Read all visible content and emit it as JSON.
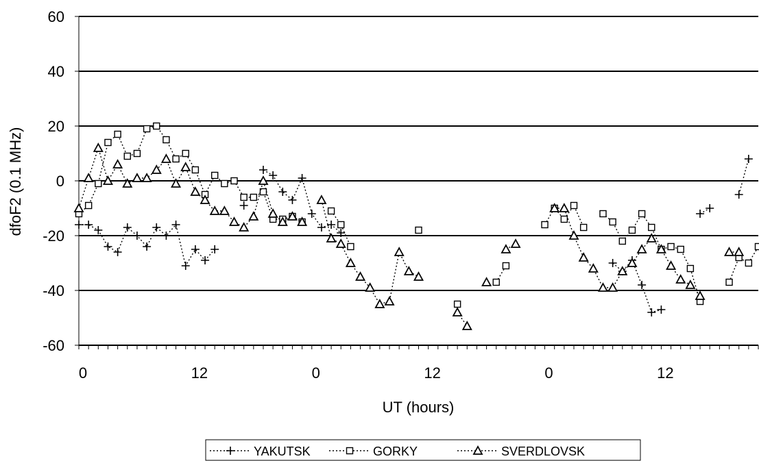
{
  "chart_data": {
    "type": "scatter",
    "title": "",
    "xlabel": "UT (hours)",
    "ylabel": "dfoF2 (0.1 MHz)",
    "ylim": [
      -60,
      60
    ],
    "yticks": [
      "60",
      "40",
      "20",
      "0",
      "-20",
      "-40",
      "-60"
    ],
    "x_unit": "hours since start of record (three consecutive days)",
    "xlim": [
      0,
      70
    ],
    "xtick_labels": [
      {
        "x": 0,
        "label": "0"
      },
      {
        "x": 12,
        "label": "12"
      },
      {
        "x": 24,
        "label": "0"
      },
      {
        "x": 36,
        "label": "12"
      },
      {
        "x": 48,
        "label": "0"
      },
      {
        "x": 60,
        "label": "12"
      }
    ],
    "grid": "horizontal",
    "legend_placement": "bottom-center",
    "series": [
      {
        "name": "YAKUTSK",
        "marker": "plus",
        "points": [
          [
            0,
            -16
          ],
          [
            1,
            -16
          ],
          [
            2,
            -18
          ],
          [
            3,
            -24
          ],
          [
            4,
            -26
          ],
          [
            5,
            -17
          ],
          [
            6,
            -20
          ],
          [
            7,
            -24
          ],
          [
            8,
            -17
          ],
          [
            9,
            -20
          ],
          [
            10,
            -16
          ],
          [
            11,
            -31
          ],
          [
            12,
            -25
          ],
          [
            13,
            -29
          ],
          [
            14,
            -25
          ],
          [
            17,
            -9
          ],
          [
            19,
            4
          ],
          [
            20,
            2
          ],
          [
            21,
            -4
          ],
          [
            22,
            -7
          ],
          [
            23,
            1
          ],
          [
            24,
            -12
          ],
          [
            25,
            -17
          ],
          [
            26,
            -16
          ],
          [
            27,
            -19
          ],
          [
            55,
            -30
          ],
          [
            56,
            -33
          ],
          [
            57,
            -29
          ],
          [
            58,
            -38
          ],
          [
            59,
            -48
          ],
          [
            60,
            -47
          ],
          [
            64,
            -12
          ],
          [
            65,
            -10
          ],
          [
            68,
            -5
          ],
          [
            69,
            8
          ]
        ]
      },
      {
        "name": "GORKY",
        "marker": "square",
        "points": [
          [
            0,
            -12
          ],
          [
            1,
            -9
          ],
          [
            2,
            -1
          ],
          [
            3,
            14
          ],
          [
            4,
            17
          ],
          [
            5,
            9
          ],
          [
            6,
            10
          ],
          [
            7,
            19
          ],
          [
            8,
            20
          ],
          [
            9,
            15
          ],
          [
            10,
            8
          ],
          [
            11,
            10
          ],
          [
            12,
            4
          ],
          [
            13,
            -5
          ],
          [
            14,
            2
          ],
          [
            15,
            -1
          ],
          [
            16,
            0
          ],
          [
            17,
            -6
          ],
          [
            18,
            -6
          ],
          [
            19,
            -4
          ],
          [
            20,
            -14
          ],
          [
            21,
            -14
          ],
          [
            22,
            -13
          ],
          [
            23,
            -15
          ],
          [
            26,
            -11
          ],
          [
            27,
            -16
          ],
          [
            28,
            -24
          ],
          [
            35,
            -18
          ],
          [
            39,
            -45
          ],
          [
            43,
            -37
          ],
          [
            44,
            -31
          ],
          [
            48,
            -16
          ],
          [
            49,
            -10
          ],
          [
            50,
            -14
          ],
          [
            51,
            -9
          ],
          [
            52,
            -17
          ],
          [
            54,
            -12
          ],
          [
            55,
            -15
          ],
          [
            56,
            -22
          ],
          [
            57,
            -18
          ],
          [
            58,
            -12
          ],
          [
            59,
            -17
          ],
          [
            60,
            -25
          ],
          [
            61,
            -24
          ],
          [
            62,
            -25
          ],
          [
            63,
            -32
          ],
          [
            64,
            -44
          ],
          [
            67,
            -37
          ],
          [
            68,
            -28
          ],
          [
            69,
            -30
          ],
          [
            70,
            -24
          ]
        ]
      },
      {
        "name": "SVERDLOVSK",
        "marker": "triangle",
        "points": [
          [
            0,
            -10
          ],
          [
            1,
            1
          ],
          [
            2,
            12
          ],
          [
            3,
            0
          ],
          [
            4,
            6
          ],
          [
            5,
            -1
          ],
          [
            6,
            1
          ],
          [
            7,
            1
          ],
          [
            8,
            4
          ],
          [
            9,
            8
          ],
          [
            10,
            -1
          ],
          [
            11,
            5
          ],
          [
            12,
            -4
          ],
          [
            13,
            -7
          ],
          [
            14,
            -11
          ],
          [
            15,
            -11
          ],
          [
            16,
            -15
          ],
          [
            17,
            -17
          ],
          [
            18,
            -13
          ],
          [
            19,
            0
          ],
          [
            20,
            -12
          ],
          [
            21,
            -15
          ],
          [
            22,
            -13
          ],
          [
            23,
            -15
          ],
          [
            25,
            -7
          ],
          [
            26,
            -21
          ],
          [
            27,
            -23
          ],
          [
            28,
            -30
          ],
          [
            29,
            -35
          ],
          [
            30,
            -39
          ],
          [
            31,
            -45
          ],
          [
            32,
            -44
          ],
          [
            33,
            -26
          ],
          [
            34,
            -33
          ],
          [
            35,
            -35
          ],
          [
            39,
            -48
          ],
          [
            40,
            -53
          ],
          [
            42,
            -37
          ],
          [
            44,
            -25
          ],
          [
            45,
            -23
          ],
          [
            49,
            -10
          ],
          [
            50,
            -10
          ],
          [
            51,
            -20
          ],
          [
            52,
            -28
          ],
          [
            53,
            -32
          ],
          [
            54,
            -39
          ],
          [
            55,
            -39
          ],
          [
            56,
            -33
          ],
          [
            57,
            -30
          ],
          [
            58,
            -25
          ],
          [
            59,
            -21
          ],
          [
            60,
            -25
          ],
          [
            61,
            -31
          ],
          [
            62,
            -36
          ],
          [
            63,
            -38
          ],
          [
            64,
            -42
          ],
          [
            67,
            -26
          ],
          [
            68,
            -26
          ]
        ]
      }
    ]
  }
}
